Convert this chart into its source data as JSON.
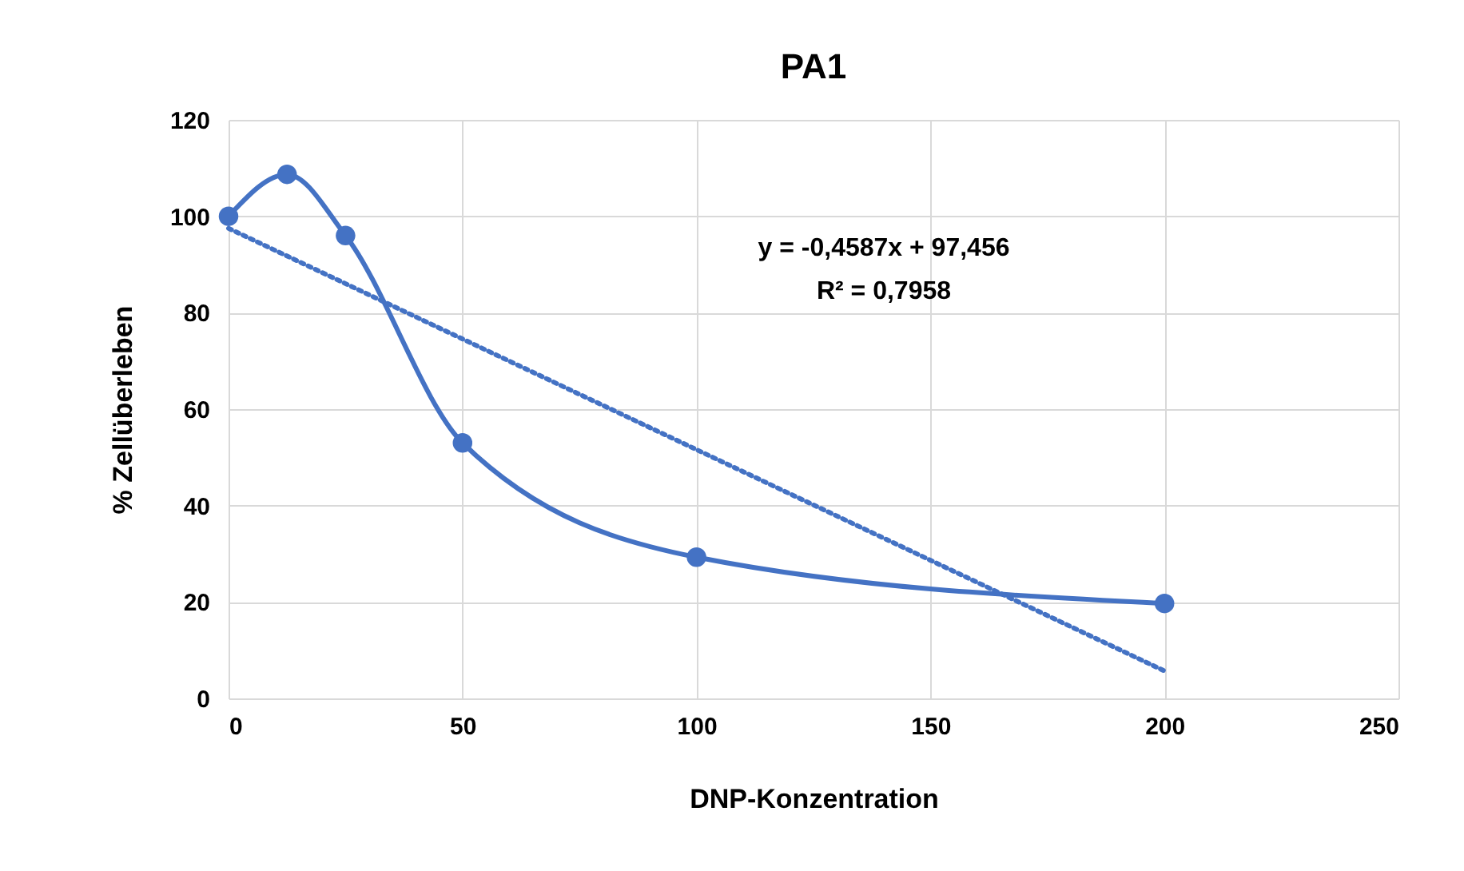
{
  "chart_data": {
    "type": "line",
    "title": "PA1",
    "xlabel": "DNP-Konzentration",
    "ylabel": "% Zellüberleben",
    "xlim": [
      0,
      250
    ],
    "xticks": [
      0,
      50,
      100,
      150,
      200,
      250
    ],
    "ylim": [
      0,
      120
    ],
    "yticks": [
      0,
      20,
      40,
      60,
      80,
      100,
      120
    ],
    "grid": true,
    "marker": "circle",
    "series": [
      {
        "color": "#4472c4",
        "x": [
          0,
          12.5,
          25,
          50,
          100,
          200
        ],
        "values": [
          100,
          108.7,
          96,
          53,
          29.3,
          19.7
        ],
        "line_style": "solid"
      },
      {
        "type": "line",
        "color": "#4472c4",
        "x": [
          0,
          200
        ],
        "values": [
          97.5,
          5.7
        ],
        "line_style": "dotted",
        "marker": "none"
      }
    ],
    "annotations": [
      "y = -0,4587x + 97,456",
      "R² = 0,7958"
    ]
  }
}
